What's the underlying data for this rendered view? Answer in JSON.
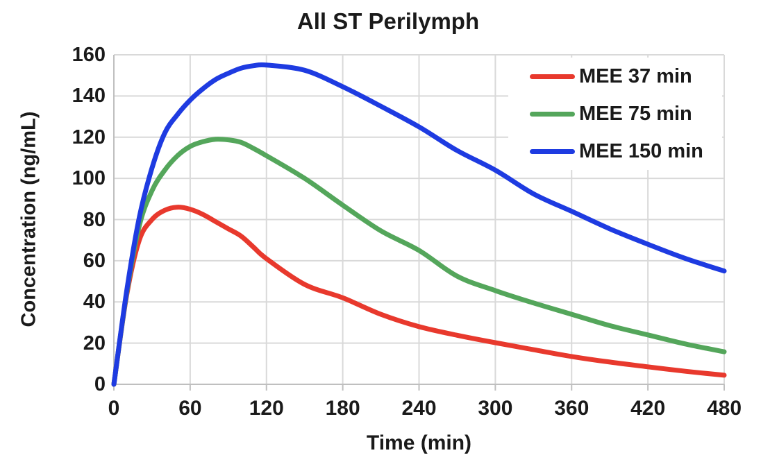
{
  "chart_data": {
    "type": "line",
    "title": "All ST Perilymph",
    "xlabel": "Time (min)",
    "ylabel": "Concentration (ng/mL)",
    "xlim": [
      0,
      480
    ],
    "ylim": [
      0,
      160
    ],
    "x_ticks": [
      0,
      60,
      120,
      180,
      240,
      300,
      360,
      420,
      480
    ],
    "y_ticks": [
      0,
      20,
      40,
      60,
      80,
      100,
      120,
      140,
      160
    ],
    "grid": true,
    "legend_position": "top-right",
    "x": [
      0,
      10,
      20,
      30,
      40,
      50,
      60,
      70,
      80,
      90,
      100,
      110,
      120,
      150,
      180,
      210,
      240,
      270,
      300,
      330,
      360,
      390,
      420,
      450,
      480
    ],
    "series": [
      {
        "name": "MEE 37 min",
        "color": "#E8392D",
        "peak": {
          "t": 50,
          "value": 86
        },
        "values": [
          0,
          43,
          70,
          80,
          84.5,
          86,
          85,
          82.5,
          79,
          75.5,
          72,
          66.5,
          61,
          48.5,
          42,
          34,
          28,
          23.8,
          20.2,
          16.8,
          13.5,
          10.8,
          8.5,
          6.3,
          4.4
        ]
      },
      {
        "name": "MEE 75 min",
        "color": "#54A65B",
        "peak": {
          "t": 80,
          "value": 119
        },
        "values": [
          0,
          44,
          77,
          94,
          104,
          111,
          115.5,
          117.8,
          119,
          118.7,
          117.5,
          114.5,
          111,
          100,
          87,
          74.5,
          65,
          52.5,
          45.5,
          39.5,
          34,
          28.5,
          24,
          19.5,
          15.8
        ]
      },
      {
        "name": "MEE 150 min",
        "color": "#1E3BE1",
        "peak": {
          "t": 120,
          "value": 155
        },
        "values": [
          0,
          45,
          81,
          105,
          122,
          131,
          138,
          143.5,
          148,
          151,
          153.5,
          154.7,
          155,
          152.5,
          144.5,
          135,
          125,
          113.5,
          104,
          92.5,
          84,
          75.5,
          68,
          61,
          55
        ]
      }
    ],
    "colors": {
      "grid": "#D9D9D9",
      "axis": "#BFBFBF",
      "text": "#1A1A1A",
      "background": "#FFFFFF"
    }
  }
}
